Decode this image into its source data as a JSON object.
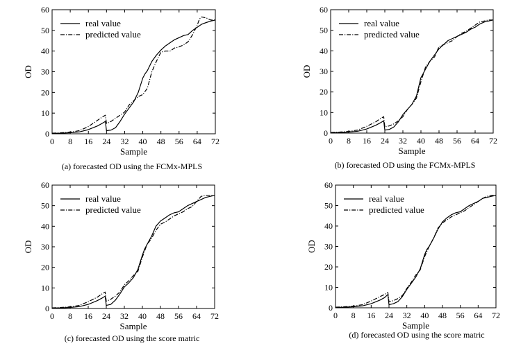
{
  "chart_data": [
    {
      "type": "line",
      "caption": "(a) forecasted OD using the FCMx-MPLS",
      "xlabel": "Sample",
      "ylabel": "OD",
      "xlim": [
        0,
        72
      ],
      "ylim": [
        0,
        60
      ],
      "xticks": [
        0,
        8,
        16,
        24,
        32,
        40,
        48,
        56,
        64,
        72
      ],
      "yticks": [
        0,
        10,
        20,
        30,
        40,
        50,
        60
      ],
      "legend": "top-left",
      "grid": false,
      "series": [
        {
          "name": "real value",
          "style": "solid",
          "x": [
            0,
            4,
            8,
            12,
            16,
            20,
            22,
            23.5,
            24,
            26,
            28,
            30,
            32,
            34,
            36,
            38,
            40,
            41,
            42,
            44,
            46,
            48,
            50,
            52,
            54,
            56,
            58,
            60,
            62,
            64,
            66,
            68,
            70,
            72
          ],
          "y": [
            0.2,
            0.3,
            0.5,
            0.9,
            2,
            3.8,
            5,
            6,
            1.5,
            1.8,
            3,
            6,
            9.5,
            12.5,
            15.5,
            20,
            27,
            29,
            30.5,
            35,
            38,
            40.5,
            42.5,
            44,
            45.5,
            46.5,
            47.5,
            48,
            50,
            51.5,
            53,
            53.8,
            54.5,
            55
          ]
        },
        {
          "name": "predicted value",
          "style": "dashdot",
          "x": [
            0,
            4,
            8,
            12,
            16,
            20,
            22,
            23.5,
            24,
            26,
            28,
            30,
            32,
            34,
            36,
            38,
            40,
            42,
            44,
            46,
            48,
            50,
            52,
            54,
            56,
            58,
            60,
            62,
            64,
            65,
            66,
            68,
            70,
            72
          ],
          "y": [
            0.3,
            0.5,
            0.8,
            1.5,
            3.5,
            6.5,
            8,
            9,
            5,
            6,
            7.5,
            9,
            10.5,
            14,
            16,
            18,
            19,
            22,
            30,
            35,
            39.5,
            40,
            40,
            41.5,
            42,
            43,
            44.5,
            48,
            52.5,
            55.5,
            56.5,
            56,
            55,
            55
          ]
        }
      ]
    },
    {
      "type": "line",
      "caption": "(b) forecasted OD using the FCMx-MPLS",
      "xlabel": "Sample",
      "ylabel": "OD",
      "xlim": [
        0,
        72
      ],
      "ylim": [
        0,
        60
      ],
      "xticks": [
        0,
        8,
        16,
        24,
        32,
        40,
        48,
        56,
        64,
        72
      ],
      "yticks": [
        0,
        10,
        20,
        30,
        40,
        50,
        60
      ],
      "legend": "top-left",
      "grid": false,
      "series": [
        {
          "name": "real value",
          "style": "solid",
          "x": [
            0,
            4,
            8,
            12,
            16,
            20,
            22,
            23.5,
            24,
            26,
            28,
            30,
            32,
            34,
            36,
            38,
            40,
            41,
            42,
            44,
            46,
            48,
            50,
            52,
            54,
            56,
            58,
            60,
            62,
            64,
            66,
            68,
            70,
            72
          ],
          "y": [
            0.2,
            0.3,
            0.5,
            0.9,
            2,
            3.8,
            5,
            6,
            1.5,
            1.8,
            3,
            5.5,
            9,
            11.5,
            14,
            18,
            27,
            29,
            31,
            35,
            38,
            41,
            43,
            45,
            46,
            47,
            48,
            49,
            50.5,
            51.5,
            53,
            54,
            54.5,
            55
          ]
        },
        {
          "name": "predicted value",
          "style": "dashdot",
          "x": [
            0,
            4,
            8,
            12,
            16,
            20,
            22,
            23.5,
            24,
            26,
            28,
            30,
            32,
            34,
            36,
            38,
            40,
            42,
            44,
            46,
            48,
            50,
            52,
            54,
            56,
            58,
            60,
            62,
            64,
            66,
            68,
            70,
            72
          ],
          "y": [
            0.3,
            0.5,
            0.8,
            1.5,
            3.3,
            5.5,
            7,
            8,
            3,
            3.5,
            4.5,
            6,
            8,
            11.5,
            14,
            17,
            25,
            32,
            35,
            37,
            42,
            43,
            44,
            45,
            47,
            48.5,
            49.5,
            51,
            52.5,
            54,
            54.5,
            55,
            55
          ]
        }
      ]
    },
    {
      "type": "line",
      "caption": "(c) forecasted OD using the score matric",
      "xlabel": "Sample",
      "ylabel": "OD",
      "xlim": [
        0,
        72
      ],
      "ylim": [
        0,
        60
      ],
      "xticks": [
        0,
        8,
        16,
        24,
        32,
        40,
        48,
        56,
        64,
        72
      ],
      "yticks": [
        0,
        10,
        20,
        30,
        40,
        50,
        60
      ],
      "legend": "top-left",
      "grid": false,
      "series": [
        {
          "name": "real value",
          "style": "solid",
          "x": [
            0,
            4,
            8,
            12,
            16,
            20,
            22,
            23.5,
            24,
            26,
            28,
            30,
            32,
            34,
            36,
            38,
            40,
            41,
            42,
            44,
            46,
            48,
            50,
            52,
            54,
            56,
            58,
            60,
            62,
            64,
            66,
            68,
            70,
            72
          ],
          "y": [
            0.2,
            0.3,
            0.5,
            0.9,
            2,
            3.8,
            5,
            6,
            1.5,
            2,
            4,
            7,
            10.5,
            12.5,
            15,
            19,
            26,
            29,
            31,
            35,
            40,
            42.5,
            44,
            45.5,
            46.5,
            47,
            48.5,
            50,
            51,
            52,
            53,
            54,
            54.5,
            55
          ]
        },
        {
          "name": "predicted value",
          "style": "dashdot",
          "x": [
            0,
            4,
            8,
            12,
            16,
            20,
            22,
            23.5,
            24,
            26,
            28,
            30,
            32,
            34,
            36,
            38,
            40,
            42,
            44,
            46,
            48,
            50,
            52,
            54,
            56,
            58,
            60,
            62,
            64,
            66,
            68,
            70,
            72
          ],
          "y": [
            0.3,
            0.5,
            0.8,
            1.5,
            3.3,
            5.5,
            7,
            8,
            3.5,
            4.5,
            6,
            8,
            11.5,
            13.5,
            16,
            18,
            25,
            31,
            34,
            38,
            41,
            42,
            43.5,
            45,
            46,
            47,
            48.5,
            49.5,
            52,
            54.5,
            55,
            55,
            55
          ]
        }
      ]
    },
    {
      "type": "line",
      "caption": "(d) forecasted OD using the score matric",
      "xlabel": "Sample",
      "ylabel": "OD",
      "xlim": [
        0,
        72
      ],
      "ylim": [
        0,
        60
      ],
      "xticks": [
        0,
        8,
        16,
        24,
        32,
        40,
        48,
        56,
        64,
        72
      ],
      "yticks": [
        0,
        10,
        20,
        30,
        40,
        50,
        60
      ],
      "legend": "top-left",
      "grid": false,
      "series": [
        {
          "name": "real value",
          "style": "solid",
          "x": [
            0,
            4,
            8,
            12,
            16,
            20,
            22,
            23.5,
            24,
            26,
            28,
            30,
            32,
            34,
            36,
            38,
            40,
            41,
            42,
            44,
            46,
            48,
            50,
            52,
            54,
            56,
            58,
            60,
            62,
            64,
            66,
            68,
            70,
            72
          ],
          "y": [
            0.2,
            0.3,
            0.5,
            0.9,
            2,
            3.8,
            5,
            6.5,
            1.5,
            2,
            3,
            5.5,
            9,
            12,
            15,
            19,
            26,
            28.5,
            30,
            34,
            38.5,
            42,
            44,
            45.5,
            46.5,
            47,
            48.5,
            50,
            51,
            52,
            53.5,
            54,
            54.5,
            55
          ]
        },
        {
          "name": "predicted value",
          "style": "dashdot",
          "x": [
            0,
            4,
            8,
            12,
            16,
            20,
            22,
            23.5,
            24,
            26,
            28,
            30,
            32,
            34,
            36,
            38,
            40,
            42,
            44,
            46,
            48,
            50,
            52,
            54,
            56,
            58,
            60,
            62,
            64,
            66,
            68,
            70,
            72
          ],
          "y": [
            0.3,
            0.5,
            0.8,
            1.5,
            3.3,
            5.5,
            6.5,
            7.5,
            3,
            3.5,
            4.5,
            6,
            9.5,
            12.5,
            16,
            18.5,
            25,
            30,
            34,
            39,
            41.5,
            43,
            44.5,
            45.5,
            46.5,
            47.5,
            49,
            50.5,
            52,
            53.5,
            54.5,
            55,
            55
          ]
        }
      ]
    }
  ]
}
